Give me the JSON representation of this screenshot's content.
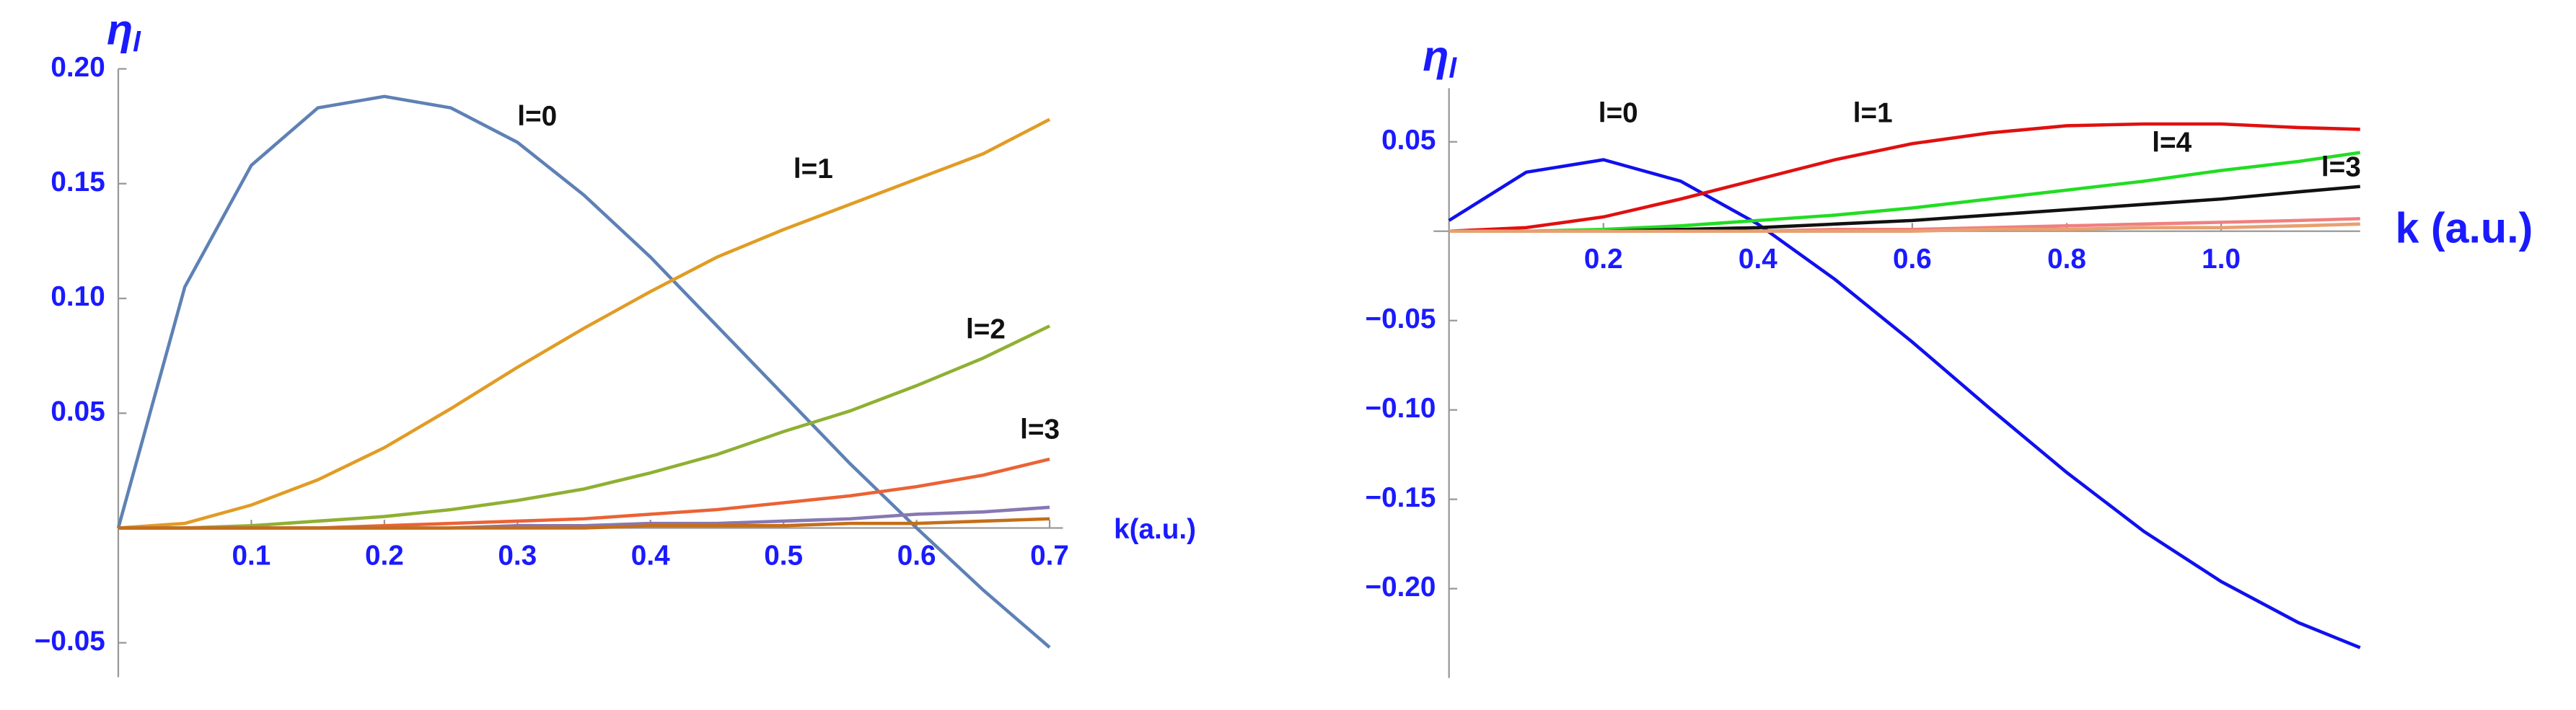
{
  "chart_data": [
    {
      "type": "line",
      "y_label": "η",
      "y_label_sub": "l",
      "x_label": "k(a.u.)",
      "xlim": [
        0,
        0.71
      ],
      "ylim": [
        -0.065,
        0.2
      ],
      "xticks": [
        0.1,
        0.2,
        0.3,
        0.4,
        0.5,
        0.6,
        0.7
      ],
      "yticks": [
        {
          "value": -0.05,
          "label": "−0.05"
        },
        0.05,
        {
          "value": 0.1,
          "label": "0.10"
        },
        0.15,
        {
          "value": 0.2,
          "label": "0.20"
        }
      ],
      "x": [
        0,
        0.05,
        0.1,
        0.15,
        0.2,
        0.25,
        0.3,
        0.35,
        0.4,
        0.45,
        0.5,
        0.55,
        0.6,
        0.65,
        0.7
      ],
      "series": [
        {
          "name": "l=0",
          "color": "#5e81b5",
          "values": [
            0,
            0.105,
            0.158,
            0.183,
            0.188,
            0.183,
            0.168,
            0.145,
            0.118,
            0.088,
            0.058,
            0.028,
            0.0,
            -0.027,
            -0.052
          ]
        },
        {
          "name": "l=1",
          "color": "#e19c24",
          "values": [
            0,
            0.002,
            0.01,
            0.021,
            0.035,
            0.052,
            0.07,
            0.087,
            0.103,
            0.118,
            0.13,
            0.141,
            0.152,
            0.163,
            0.178
          ]
        },
        {
          "name": "l=2",
          "color": "#8fb032",
          "values": [
            0,
            0,
            0.001,
            0.003,
            0.005,
            0.008,
            0.012,
            0.017,
            0.024,
            0.032,
            0.042,
            0.051,
            0.062,
            0.074,
            0.088
          ]
        },
        {
          "name": "l=3",
          "color": "#eb6235",
          "values": [
            0,
            0,
            0,
            0,
            0.001,
            0.002,
            0.003,
            0.004,
            0.006,
            0.008,
            0.011,
            0.014,
            0.018,
            0.023,
            0.03
          ]
        },
        {
          "color": "#8778b3",
          "values": [
            0,
            0,
            0,
            0,
            0,
            0,
            0.001,
            0.001,
            0.002,
            0.002,
            0.003,
            0.004,
            0.006,
            0.007,
            0.009
          ]
        },
        {
          "color": "#c56e1a",
          "values": [
            0,
            0,
            0,
            0,
            0,
            0,
            0,
            0,
            0.001,
            0.001,
            0.001,
            0.002,
            0.002,
            0.003,
            0.004
          ]
        }
      ]
    },
    {
      "type": "line",
      "y_label": "η",
      "y_label_sub": "l",
      "x_label": "k (a.u.)",
      "xlim": [
        -0.02,
        1.18
      ],
      "ylim": [
        -0.25,
        0.08
      ],
      "xticks": [
        0.2,
        0.4,
        0.6,
        0.8,
        {
          "value": 1,
          "label": "1.0"
        }
      ],
      "yticks": [
        0.05,
        {
          "value": -0.05,
          "label": "−0.05"
        },
        {
          "value": -0.1,
          "label": "−0.10"
        },
        {
          "value": -0.15,
          "label": "−0.15"
        },
        {
          "value": -0.2,
          "label": "−0.20"
        }
      ],
      "x": [
        0,
        0.1,
        0.2,
        0.3,
        0.4,
        0.5,
        0.6,
        0.7,
        0.8,
        0.9,
        1.0,
        1.1,
        1.18
      ],
      "series": [
        {
          "name": "l=0",
          "color": "#1010ee",
          "values": [
            0.006,
            0.033,
            0.04,
            0.028,
            0.004,
            -0.027,
            -0.062,
            -0.099,
            -0.135,
            -0.168,
            -0.196,
            -0.219,
            -0.233
          ]
        },
        {
          "name": "l=1",
          "color": "#e01010",
          "values": [
            0,
            0.002,
            0.008,
            0.018,
            0.029,
            0.04,
            0.049,
            0.055,
            0.059,
            0.06,
            0.06,
            0.058,
            0.057
          ]
        },
        {
          "name": "l=4",
          "color": "#22dd22",
          "values": [
            0,
            0,
            0.001,
            0.003,
            0.006,
            0.009,
            0.013,
            0.018,
            0.023,
            0.028,
            0.034,
            0.039,
            0.044
          ]
        },
        {
          "name": "l=3",
          "color": "#111111",
          "values": [
            0,
            0,
            0,
            0.001,
            0.002,
            0.004,
            0.006,
            0.009,
            0.012,
            0.015,
            0.018,
            0.022,
            0.025
          ]
        },
        {
          "color": "#f08080",
          "values": [
            0,
            0,
            0,
            0,
            0,
            0.001,
            0.001,
            0.002,
            0.003,
            0.004,
            0.005,
            0.006,
            0.007
          ]
        },
        {
          "color": "#e8a070",
          "values": [
            0,
            0,
            0,
            0,
            0,
            0,
            0,
            0.001,
            0.001,
            0.002,
            0.002,
            0.003,
            0.004
          ]
        }
      ]
    }
  ]
}
